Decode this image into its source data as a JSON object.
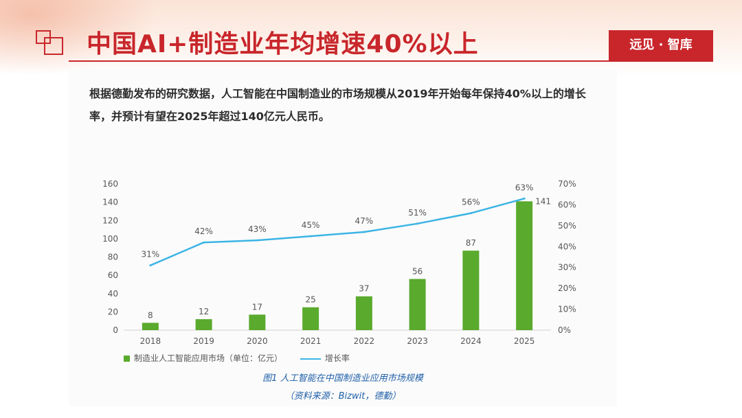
{
  "header": {
    "title": "中国AI+制造业年均增速40%以上",
    "brand": "远见 · 智库"
  },
  "description": "根据德勤发布的研究数据，人工智能在中国制造业的市场规模从2019年开始每年保持40%以上的增长率，并预计有望在2025年超过140亿元人民币。",
  "chart_data": {
    "type": "bar",
    "categories": [
      "2018",
      "2019",
      "2020",
      "2021",
      "2022",
      "2023",
      "2024",
      "2025"
    ],
    "series": [
      {
        "name": "制造业人工智能应用市场（单位：亿元）",
        "type": "bar",
        "axis": "left",
        "values": [
          8,
          12,
          17,
          25,
          37,
          56,
          87,
          141
        ],
        "labels": [
          "8",
          "12",
          "17",
          "25",
          "37",
          "56",
          "87",
          "141"
        ]
      },
      {
        "name": "增长率",
        "type": "line",
        "axis": "right",
        "values": [
          31,
          42,
          43,
          45,
          47,
          51,
          56,
          63
        ],
        "labels": [
          "31%",
          "42%",
          "43%",
          "45%",
          "47%",
          "51%",
          "56%",
          "63%"
        ]
      }
    ],
    "ylim_left": [
      0,
      160
    ],
    "yticks_left": [
      "0",
      "20",
      "40",
      "60",
      "80",
      "100",
      "120",
      "140",
      "160"
    ],
    "ylim_right": [
      0,
      70
    ],
    "yticks_right": [
      "0%",
      "10%",
      "20%",
      "30%",
      "40%",
      "50%",
      "60%",
      "70%"
    ],
    "grid": false,
    "legend_position": "bottom-left",
    "caption": "图1 人工智能在中国制造业应用市场规模",
    "source": "（资料来源：Bizwit，德勤）"
  },
  "colors": {
    "accent": "#c8262b",
    "bar": "#5aaa2e",
    "line": "#3bb4e5",
    "caption": "#1f5fa8"
  }
}
